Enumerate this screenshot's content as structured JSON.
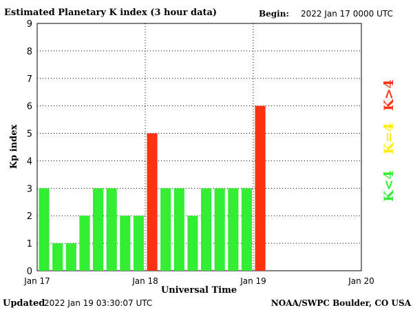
{
  "chart_data": {
    "type": "bar",
    "title": "Estimated Planetary K index (3 hour data)",
    "begin_label": "Begin:",
    "begin_value": "2022 Jan 17 0000 UTC",
    "xlabel": "Universal Time",
    "ylabel": "Kp index",
    "ylim": [
      0,
      9
    ],
    "yticks": [
      "0",
      "1",
      "2",
      "3",
      "4",
      "5",
      "6",
      "7",
      "8",
      "9"
    ],
    "xticks": [
      "Jan 17",
      "Jan 18",
      "Jan 19",
      "Jan 20"
    ],
    "grid": true,
    "bars_per_day": 8,
    "values": [
      3,
      1,
      1,
      2,
      3,
      3,
      2,
      2,
      5,
      3,
      3,
      2,
      3,
      3,
      3,
      3,
      6
    ],
    "legend": [
      {
        "label": "K<4",
        "color": "#33ee33"
      },
      {
        "label": "K=4",
        "color": "#ffee00"
      },
      {
        "label": "K>4",
        "color": "#ff3311"
      }
    ],
    "colors": {
      "low": "#33ee33",
      "mid": "#ffee00",
      "high": "#ff3311"
    }
  },
  "footer": {
    "updated_label": "Updated",
    "updated_value": "2022 Jan 19 03:30:07 UTC",
    "source": "NOAA/SWPC Boulder, CO USA"
  }
}
